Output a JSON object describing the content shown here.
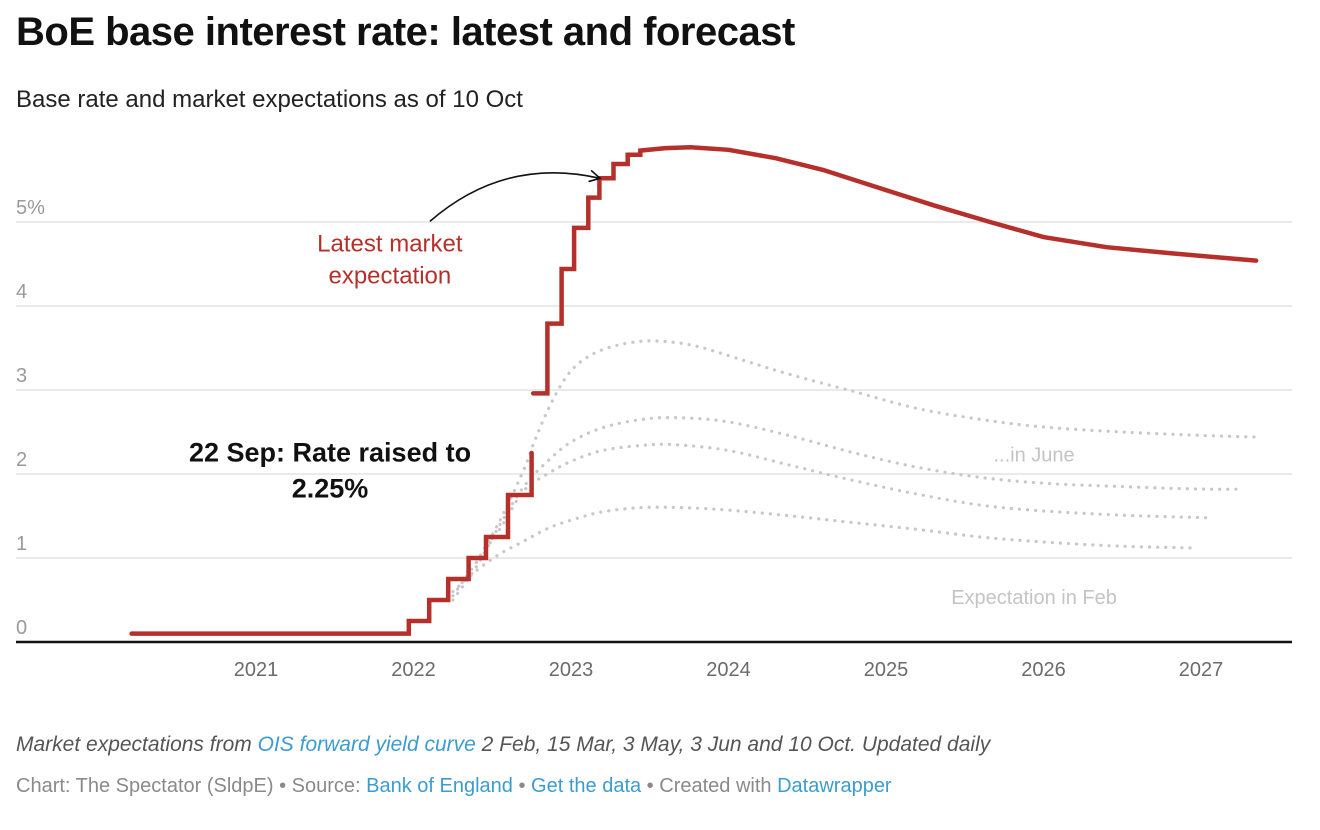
{
  "header": {
    "title": "BoE base interest rate: latest and forecast",
    "subtitle": "Base rate and market expectations as of 10 Oct"
  },
  "chart_data": {
    "type": "line",
    "title": "BoE base interest rate: latest and forecast",
    "subtitle": "Base rate and market expectations as of 10 Oct",
    "xlabel": "",
    "ylabel": "",
    "xlim": [
      2020.2,
      2027.6
    ],
    "ylim": [
      0,
      6
    ],
    "x_ticks": [
      {
        "value": 2021,
        "label": "2021"
      },
      {
        "value": 2022,
        "label": "2022"
      },
      {
        "value": 2023,
        "label": "2023"
      },
      {
        "value": 2024,
        "label": "2024"
      },
      {
        "value": 2025,
        "label": "2025"
      },
      {
        "value": 2026,
        "label": "2026"
      },
      {
        "value": 2027,
        "label": "2027"
      }
    ],
    "y_ticks": [
      {
        "value": 0,
        "label": "0"
      },
      {
        "value": 1,
        "label": "1"
      },
      {
        "value": 2,
        "label": "2"
      },
      {
        "value": 3,
        "label": "3"
      },
      {
        "value": 4,
        "label": "4"
      },
      {
        "value": 5,
        "label": "5%"
      }
    ],
    "grid": true,
    "series": [
      {
        "name": "Base rate",
        "style": "step",
        "color": "#b5302a",
        "points": [
          [
            2020.21,
            0.1
          ],
          [
            2021.97,
            0.1
          ],
          [
            2021.97,
            0.25
          ],
          [
            2022.1,
            0.25
          ],
          [
            2022.1,
            0.5
          ],
          [
            2022.22,
            0.5
          ],
          [
            2022.22,
            0.75
          ],
          [
            2022.35,
            0.75
          ],
          [
            2022.35,
            1.0
          ],
          [
            2022.46,
            1.0
          ],
          [
            2022.46,
            1.25
          ],
          [
            2022.6,
            1.25
          ],
          [
            2022.6,
            1.75
          ],
          [
            2022.75,
            1.75
          ],
          [
            2022.75,
            2.25
          ]
        ]
      },
      {
        "name": "Latest market expectation (10 Oct)",
        "style": "step",
        "color": "#b5302a",
        "points": [
          [
            2022.76,
            2.96
          ],
          [
            2022.85,
            2.96
          ],
          [
            2022.85,
            3.79
          ],
          [
            2022.94,
            3.79
          ],
          [
            2022.94,
            4.44
          ],
          [
            2023.02,
            4.44
          ],
          [
            2023.02,
            4.93
          ],
          [
            2023.11,
            4.93
          ],
          [
            2023.11,
            5.29
          ],
          [
            2023.18,
            5.29
          ],
          [
            2023.18,
            5.52
          ],
          [
            2023.27,
            5.52
          ],
          [
            2023.27,
            5.69
          ],
          [
            2023.36,
            5.69
          ],
          [
            2023.36,
            5.8
          ],
          [
            2023.44,
            5.8
          ],
          [
            2023.44,
            5.85
          ],
          [
            2023.6,
            5.88
          ],
          [
            2023.76,
            5.89
          ],
          [
            2024.0,
            5.86
          ],
          [
            2024.3,
            5.76
          ],
          [
            2024.6,
            5.62
          ],
          [
            2025.0,
            5.38
          ],
          [
            2025.3,
            5.2
          ],
          [
            2025.66,
            5.0
          ],
          [
            2026.0,
            4.82
          ],
          [
            2026.4,
            4.7
          ],
          [
            2026.8,
            4.63
          ],
          [
            2027.1,
            4.58
          ],
          [
            2027.35,
            4.54
          ]
        ]
      },
      {
        "name": "Expectation 3 Jun",
        "style": "dotted",
        "color": "#c8c8c8",
        "points": [
          [
            2022.4,
            0.95
          ],
          [
            2022.55,
            1.45
          ],
          [
            2022.7,
            2.05
          ],
          [
            2022.76,
            2.35
          ],
          [
            2022.85,
            2.75
          ],
          [
            2022.95,
            3.1
          ],
          [
            2023.05,
            3.32
          ],
          [
            2023.2,
            3.48
          ],
          [
            2023.4,
            3.57
          ],
          [
            2023.58,
            3.58
          ],
          [
            2023.8,
            3.52
          ],
          [
            2024.1,
            3.35
          ],
          [
            2024.4,
            3.18
          ],
          [
            2024.8,
            2.98
          ],
          [
            2025.2,
            2.78
          ],
          [
            2025.6,
            2.65
          ],
          [
            2026.0,
            2.56
          ],
          [
            2026.5,
            2.5
          ],
          [
            2027.0,
            2.46
          ],
          [
            2027.35,
            2.44
          ]
        ]
      },
      {
        "name": "Expectation 3 May",
        "style": "dotted",
        "color": "#c8c8c8",
        "points": [
          [
            2022.25,
            0.5
          ],
          [
            2022.4,
            0.9
          ],
          [
            2022.55,
            1.4
          ],
          [
            2022.7,
            1.85
          ],
          [
            2022.85,
            2.15
          ],
          [
            2023.0,
            2.38
          ],
          [
            2023.2,
            2.55
          ],
          [
            2023.45,
            2.65
          ],
          [
            2023.68,
            2.67
          ],
          [
            2024.0,
            2.62
          ],
          [
            2024.4,
            2.45
          ],
          [
            2024.8,
            2.25
          ],
          [
            2025.2,
            2.08
          ],
          [
            2025.6,
            1.96
          ],
          [
            2026.0,
            1.89
          ],
          [
            2026.5,
            1.85
          ],
          [
            2027.0,
            1.82
          ],
          [
            2027.27,
            1.82
          ]
        ]
      },
      {
        "name": "Expectation 15 Mar",
        "style": "dotted",
        "color": "#c8c8c8",
        "points": [
          [
            2022.25,
            0.55
          ],
          [
            2022.4,
            0.95
          ],
          [
            2022.55,
            1.35
          ],
          [
            2022.7,
            1.8
          ],
          [
            2022.85,
            2.0
          ],
          [
            2023.0,
            2.15
          ],
          [
            2023.2,
            2.28
          ],
          [
            2023.45,
            2.34
          ],
          [
            2023.65,
            2.35
          ],
          [
            2024.0,
            2.28
          ],
          [
            2024.4,
            2.1
          ],
          [
            2024.8,
            1.92
          ],
          [
            2025.2,
            1.76
          ],
          [
            2025.6,
            1.63
          ],
          [
            2026.0,
            1.56
          ],
          [
            2026.5,
            1.51
          ],
          [
            2027.03,
            1.48
          ]
        ]
      },
      {
        "name": "Expectation 2 Feb",
        "style": "dotted",
        "color": "#c8c8c8",
        "points": [
          [
            2022.25,
            0.6
          ],
          [
            2022.4,
            0.85
          ],
          [
            2022.55,
            1.05
          ],
          [
            2022.7,
            1.2
          ],
          [
            2022.85,
            1.35
          ],
          [
            2023.0,
            1.45
          ],
          [
            2023.2,
            1.55
          ],
          [
            2023.45,
            1.6
          ],
          [
            2023.7,
            1.6
          ],
          [
            2024.0,
            1.57
          ],
          [
            2024.4,
            1.5
          ],
          [
            2024.8,
            1.42
          ],
          [
            2025.2,
            1.34
          ],
          [
            2025.6,
            1.25
          ],
          [
            2026.0,
            1.19
          ],
          [
            2026.5,
            1.14
          ],
          [
            2026.95,
            1.12
          ]
        ]
      }
    ],
    "annotations": [
      {
        "id": "latest",
        "lines": [
          "Latest market",
          "expectation"
        ],
        "x": 2021.85,
        "y": 4.65,
        "color": "#b5302a",
        "arrow_to": [
          2023.21,
          5.52
        ]
      },
      {
        "id": "sep",
        "lines": [
          "22 Sep: Rate raised to",
          "2.25%"
        ],
        "x": 2021.47,
        "y": 2.15,
        "color": "#111111"
      },
      {
        "id": "june",
        "lines": [
          "...in June"
        ],
        "x": 2025.94,
        "y": 2.15,
        "color": "#c4c4c4"
      },
      {
        "id": "feb",
        "lines": [
          "Expectation in Feb"
        ],
        "x": 2025.94,
        "y": 0.45,
        "color": "#c4c4c4"
      }
    ]
  },
  "footer": {
    "notes_prefix": "Market expectations from ",
    "notes_link": "OIS forward yield curve",
    "notes_suffix": " 2 Feb, 15 Mar, 3 May, 3 Jun and 10 Oct. Updated daily",
    "chart_by": "Chart: The Spectator (SldpE)",
    "sep": " • ",
    "source_label": "Source: ",
    "source_link": "Bank of England",
    "get_data": "Get the data",
    "created_with": "Created with ",
    "tool_link": "Datawrapper"
  },
  "colors": {
    "accent_red": "#b5302a",
    "dotted_grey": "#c8c8c8",
    "link_blue": "#3d9ccf"
  }
}
